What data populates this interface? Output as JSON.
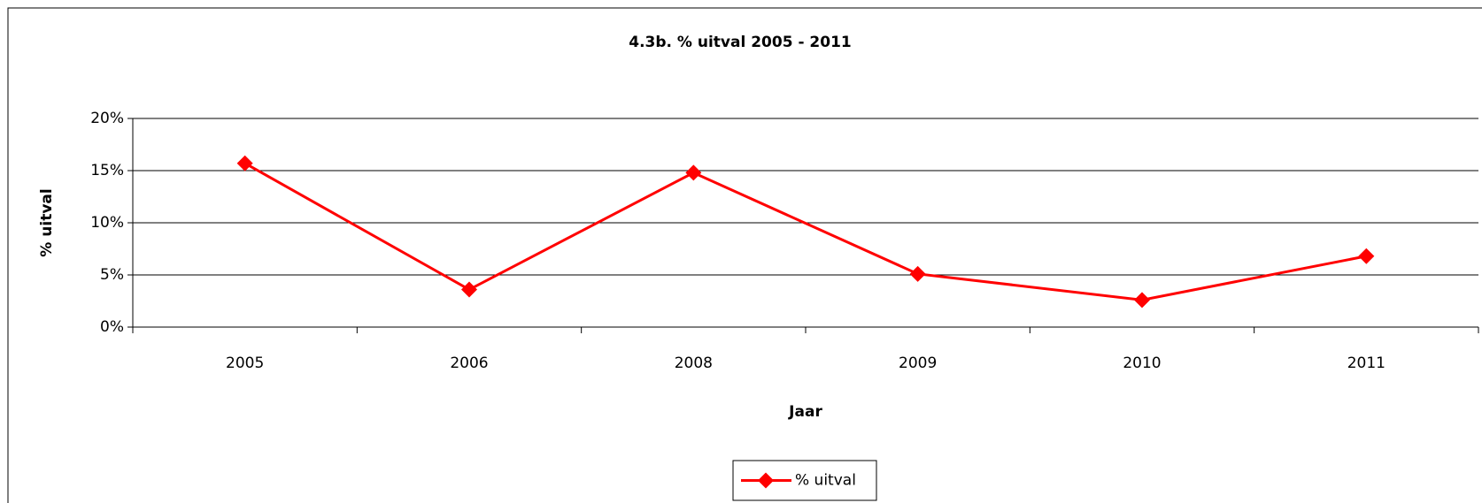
{
  "chart_data": {
    "type": "line",
    "title": "4.3b.  % uitval 2005 - 2011",
    "x_label": "Jaar",
    "y_label": "% uitval",
    "categories": [
      "2005",
      "2006",
      "2008",
      "2009",
      "2010",
      "2011"
    ],
    "series": [
      {
        "name": "% uitval",
        "color": "#ff0000",
        "values": [
          15.7,
          3.6,
          14.8,
          5.1,
          2.6,
          6.8
        ]
      }
    ],
    "ylim": [
      0,
      20
    ],
    "yticks": [
      {
        "value": 0,
        "label": "0%"
      },
      {
        "value": 5,
        "label": "5%"
      },
      {
        "value": 10,
        "label": "10%"
      },
      {
        "value": 15,
        "label": "15%"
      },
      {
        "value": 20,
        "label": "20%"
      }
    ],
    "grid": true,
    "legend": "bottom"
  }
}
